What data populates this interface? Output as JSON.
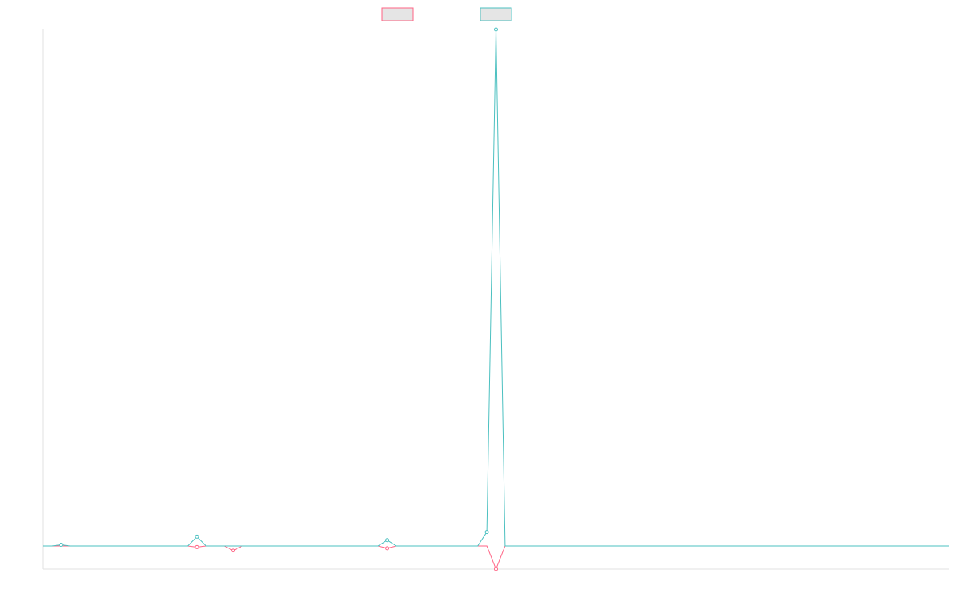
{
  "chart_data": {
    "type": "line",
    "x": [
      0,
      1,
      2,
      3,
      4,
      5,
      6,
      7,
      8,
      9,
      10,
      11,
      12,
      13,
      14,
      15,
      16,
      17,
      18,
      19,
      20,
      21,
      22,
      23,
      24,
      25,
      26,
      27,
      28,
      29,
      30,
      31,
      32,
      33,
      34,
      35,
      36,
      37,
      38,
      39,
      40,
      41,
      42,
      43,
      44,
      45,
      46,
      47,
      48,
      49,
      50,
      51,
      52,
      53,
      54,
      55,
      56,
      57,
      58,
      59,
      60,
      61,
      62,
      63,
      64,
      65,
      66,
      67,
      68,
      69,
      70,
      71,
      72,
      73,
      74,
      75,
      76,
      77,
      78,
      79,
      80,
      81,
      82,
      83,
      84,
      85,
      86,
      87,
      88,
      89,
      90,
      91,
      92,
      93,
      94,
      95,
      96,
      97,
      98,
      99,
      100
    ],
    "xlim": [
      0,
      100
    ],
    "ylim": [
      -1,
      22.4
    ],
    "grid": false,
    "series": [
      {
        "color": "#ff6384",
        "values": [
          0,
          0,
          0,
          0,
          0,
          0,
          0,
          0,
          0,
          0,
          0,
          0,
          0,
          0,
          0,
          0,
          0,
          -0.05,
          0,
          0,
          0,
          -0.2,
          0,
          0,
          0,
          0,
          0,
          0,
          0,
          0,
          0,
          0,
          0,
          0,
          0,
          0,
          0,
          0,
          -0.1,
          0,
          0,
          0,
          0,
          0,
          0,
          0,
          0,
          0,
          0,
          0,
          -1,
          0,
          0,
          0,
          0,
          0,
          0,
          0,
          0,
          0,
          0,
          0,
          0,
          0,
          0,
          0,
          0,
          0,
          0,
          0,
          0,
          0,
          0,
          0,
          0,
          0,
          0,
          0,
          0,
          0,
          0,
          0,
          0,
          0,
          0,
          0,
          0,
          0,
          0,
          0,
          0,
          0,
          0,
          0,
          0,
          0,
          0,
          0,
          0,
          0,
          0
        ]
      },
      {
        "color": "#4bc0c0",
        "values": [
          0,
          0,
          0.05,
          0,
          0,
          0,
          0,
          0,
          0,
          0,
          0,
          0,
          0,
          0,
          0,
          0,
          0,
          0.4,
          0,
          0,
          0,
          0,
          0,
          0,
          0,
          0,
          0,
          0,
          0,
          0,
          0,
          0,
          0,
          0,
          0,
          0,
          0,
          0,
          0.25,
          0,
          0,
          0,
          0,
          0,
          0,
          0,
          0,
          0,
          0,
          0.6,
          22.4,
          0,
          0,
          0,
          0,
          0,
          0,
          0,
          0,
          0,
          0,
          0,
          0,
          0,
          0,
          0,
          0,
          0,
          0,
          0,
          0,
          0,
          0,
          0,
          0,
          0,
          0,
          0,
          0,
          0,
          0,
          0,
          0,
          0,
          0,
          0,
          0,
          0,
          0,
          0,
          0,
          0,
          0,
          0,
          0,
          0,
          0,
          0,
          0,
          0,
          0
        ]
      }
    ]
  }
}
